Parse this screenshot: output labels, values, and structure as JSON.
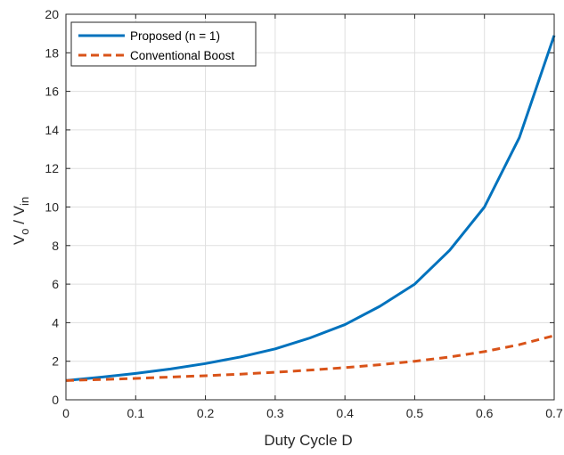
{
  "chart_data": {
    "type": "line",
    "title": "",
    "xlabel": "Duty Cycle D",
    "ylabel": {
      "v1": "V",
      "sub1": "o",
      "slash": " / ",
      "v2": "V",
      "sub2": "in"
    },
    "xlim": [
      0,
      0.7
    ],
    "ylim": [
      0,
      20
    ],
    "xticks": [
      0,
      0.1,
      0.2,
      0.3,
      0.4,
      0.5,
      0.6,
      0.7
    ],
    "xtick_labels": [
      "0",
      "0.1",
      "0.2",
      "0.3",
      "0.4",
      "0.5",
      "0.6",
      "0.7"
    ],
    "yticks": [
      0,
      2,
      4,
      6,
      8,
      10,
      12,
      14,
      16,
      18,
      20
    ],
    "ytick_labels": [
      "0",
      "2",
      "4",
      "6",
      "8",
      "10",
      "12",
      "14",
      "16",
      "18",
      "20"
    ],
    "grid": true,
    "legend_position": "top-left",
    "x": [
      0,
      0.05,
      0.1,
      0.15,
      0.2,
      0.25,
      0.3,
      0.35,
      0.4,
      0.45,
      0.5,
      0.55,
      0.6,
      0.65,
      0.7
    ],
    "series": [
      {
        "name": "Proposed (n = 1)",
        "color": "#0072BD",
        "style": "solid",
        "values": [
          1.0,
          1.17,
          1.37,
          1.6,
          1.88,
          2.22,
          2.64,
          3.21,
          3.9,
          4.85,
          6.0,
          7.75,
          10.0,
          13.6,
          18.9
        ]
      },
      {
        "name": "Conventional Boost",
        "color": "#D95319",
        "style": "dashed",
        "values": [
          1.0,
          1.05,
          1.11,
          1.18,
          1.25,
          1.33,
          1.43,
          1.54,
          1.67,
          1.82,
          2.0,
          2.22,
          2.5,
          2.86,
          3.33
        ]
      }
    ]
  }
}
